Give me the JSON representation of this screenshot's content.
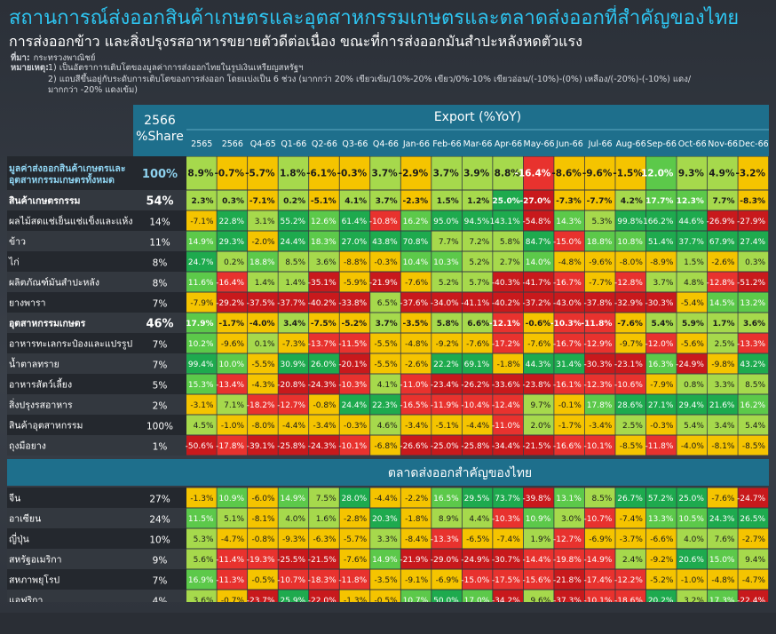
{
  "title": "สถานการณ์ส่งออกสินค้าเกษตรและอุตสาหกรรมเกษตรและตลาดส่งออกที่สำคัญของไทย",
  "subtitle": "การส่งออกข้าว และสิ่งปรุงรสอาหารขยายตัวดีต่อเนื่อง ขณะที่การส่งออกมันสำปะหลังหดตัวแรง",
  "source_label": "ที่มา:",
  "source_text": "กระทรวงพาณิชย์",
  "notes_label": "หมายเหตุ:",
  "notes_lines": [
    "1) เป็นอัตราการเติบโตของมูลค่าการส่งออกไทยในรูปเงินเหรียญสหรัฐฯ",
    "2) แถบสีขึ้นอยู่กับระดับการเติบโตของการส่งออก โดยแบ่งเป็น 6 ช่วง (มากกว่า 20% เขียวเข้ม/10%-20% เขียว/0%-10% เขียวอ่อน/(-10%)-(0%) เหลือง/(-20%)-(-10%) แดง/",
    "มากกว่า -20% แดงเข้ม)"
  ],
  "colors": {
    "header_bg": "#1e6f8c",
    "share_bg": "#1e6f8c",
    "dark_green": "#1eaa4e",
    "green": "#5cc94a",
    "light_green": "#a6d94c",
    "yellow": "#f5c400",
    "red": "#e8322e",
    "dark_red": "#c8191c",
    "row_dark": "#24282e",
    "row_light": "#33383f"
  },
  "chart_data": {
    "type": "table",
    "share_header": [
      "2566",
      "%Share"
    ],
    "export_header": "Export (%YoY)",
    "columns": [
      "2565",
      "2566",
      "Q4-65",
      "Q1-66",
      "Q2-66",
      "Q3-66",
      "Q4-66",
      "Jan-66",
      "Feb-66",
      "Mar-66",
      "Apr-66",
      "May-66",
      "Jun-66",
      "Jul-66",
      "Aug-66",
      "Sep-66",
      "Oct-66",
      "Nov-66",
      "Dec-66"
    ],
    "section1_rows": [
      {
        "label": "มูลค่าส่งออกสินค้าเกษตรและอุตสาหกรรมเกษตรทั้งหมด",
        "label_lines": [
          "มูลค่าส่งออกสินค้าเกษตรและ",
          "อุตสาหกรรมเกษตรทั้งหมด"
        ],
        "style": "total",
        "share": "100%",
        "values": [
          "8.9%",
          "-0.7%",
          "-5.7%",
          "1.8%",
          "-6.1%",
          "-0.3%",
          "3.7%",
          "-2.9%",
          "3.7%",
          "3.9%",
          "8.8%",
          "-16.4%",
          "-8.6%",
          "-9.6%",
          "-1.5%",
          "12.0%",
          "9.3%",
          "4.9%",
          "-3.2%"
        ]
      },
      {
        "label": "สินค้าเกษตรกรรม",
        "style": "bold",
        "share": "54%",
        "values": [
          "2.3%",
          "0.3%",
          "-7.1%",
          "0.2%",
          "-5.1%",
          "4.1%",
          "3.7%",
          "-2.3%",
          "1.5%",
          "1.2%",
          "25.0%",
          "-27.0%",
          "-7.3%",
          "-7.7%",
          "4.2%",
          "17.7%",
          "12.3%",
          "7.7%",
          "-8.3%"
        ]
      },
      {
        "label": "ผลไม้สดแช่เย็นแช่แข็งและแห้ง",
        "style": "normal",
        "share": "14%",
        "values": [
          "-7.1%",
          "22.8%",
          "3.1%",
          "55.2%",
          "12.6%",
          "61.4%",
          "-10.8%",
          "16.2%",
          "95.0%",
          "94.5%",
          "143.1%",
          "-54.8%",
          "14.3%",
          "5.3%",
          "99.8%",
          "166.2%",
          "44.6%",
          "-26.9%",
          "-27.9%"
        ]
      },
      {
        "label": "ข้าว",
        "style": "normal",
        "share": "11%",
        "values": [
          "14.9%",
          "29.3%",
          "-2.0%",
          "24.4%",
          "18.3%",
          "27.0%",
          "43.8%",
          "70.8%",
          "7.7%",
          "7.2%",
          "5.8%",
          "84.7%",
          "-15.0%",
          "18.8%",
          "10.8%",
          "51.4%",
          "37.7%",
          "67.9%",
          "27.4%"
        ]
      },
      {
        "label": "ไก่",
        "style": "normal",
        "share": "8%",
        "values": [
          "24.7%",
          "0.2%",
          "18.8%",
          "8.5%",
          "3.6%",
          "-8.8%",
          "-0.3%",
          "10.4%",
          "10.3%",
          "5.2%",
          "2.7%",
          "14.0%",
          "-4.8%",
          "-9.6%",
          "-8.0%",
          "-8.9%",
          "1.5%",
          "-2.6%",
          "0.3%"
        ]
      },
      {
        "label": "ผลิตภัณฑ์มันสำปะหลัง",
        "style": "normal",
        "share": "8%",
        "values": [
          "11.6%",
          "-16.4%",
          "1.4%",
          "1.4%",
          "-35.1%",
          "-5.9%",
          "-21.9%",
          "-7.6%",
          "5.2%",
          "5.7%",
          "-40.3%",
          "-41.7%",
          "-16.7%",
          "-7.7%",
          "-12.8%",
          "3.7%",
          "4.8%",
          "-12.8%",
          "-51.2%"
        ]
      },
      {
        "label": "ยางพารา",
        "style": "normal",
        "share": "7%",
        "values": [
          "-7.9%",
          "-29.2%",
          "-37.5%",
          "-37.7%",
          "-40.2%",
          "-33.8%",
          "6.5%",
          "-37.6%",
          "-34.0%",
          "-41.1%",
          "-40.2%",
          "-37.2%",
          "-43.0%",
          "-37.8%",
          "-32.9%",
          "-30.3%",
          "-5.4%",
          "14.5%",
          "13.2%"
        ]
      },
      {
        "label": "อุตสาหกรรมเกษตร",
        "style": "bold",
        "share": "46%",
        "values": [
          "17.9%",
          "-1.7%",
          "-4.0%",
          "3.4%",
          "-7.5%",
          "-5.2%",
          "3.7%",
          "-3.5%",
          "5.8%",
          "6.6%",
          "-12.1%",
          "-0.6%",
          "-10.3%",
          "-11.8%",
          "-7.6%",
          "5.4%",
          "5.9%",
          "1.7%",
          "3.6%"
        ]
      },
      {
        "label": "อาหารทะเลกระป๋องและแปรรูป",
        "style": "normal",
        "share": "7%",
        "values": [
          "10.2%",
          "-9.6%",
          "0.1%",
          "-7.3%",
          "-13.7%",
          "-11.5%",
          "-5.5%",
          "-4.8%",
          "-9.2%",
          "-7.6%",
          "-17.2%",
          "-7.6%",
          "-16.7%",
          "-12.9%",
          "-9.7%",
          "-12.0%",
          "-5.6%",
          "2.5%",
          "-13.3%"
        ]
      },
      {
        "label": "น้ำตาลทราย",
        "style": "normal",
        "share": "7%",
        "values": [
          "99.4%",
          "10.0%",
          "-5.5%",
          "30.9%",
          "26.0%",
          "-20.1%",
          "-5.5%",
          "-2.6%",
          "22.2%",
          "69.1%",
          "-1.8%",
          "44.3%",
          "31.4%",
          "-30.3%",
          "-23.1%",
          "16.3%",
          "-24.9%",
          "-9.8%",
          "43.2%"
        ]
      },
      {
        "label": "อาหารสัตว์เลี้ยง",
        "style": "normal",
        "share": "5%",
        "values": [
          "15.3%",
          "-13.4%",
          "-4.3%",
          "-20.8%",
          "-24.3%",
          "-10.3%",
          "4.1%",
          "-11.0%",
          "-23.4%",
          "-26.2%",
          "-33.6%",
          "-23.8%",
          "-16.1%",
          "-12.3%",
          "-10.6%",
          "-7.9%",
          "0.8%",
          "3.3%",
          "8.5%"
        ]
      },
      {
        "label": "สิ่งปรุงรสอาหาร",
        "style": "normal",
        "share": "2%",
        "values": [
          "-3.1%",
          "7.1%",
          "-18.2%",
          "-12.7%",
          "-0.8%",
          "24.4%",
          "22.3%",
          "-16.5%",
          "-11.9%",
          "-10.4%",
          "-12.4%",
          "9.7%",
          "-0.1%",
          "17.8%",
          "28.6%",
          "27.1%",
          "29.4%",
          "21.6%",
          "16.2%"
        ]
      },
      {
        "label": "สินค้าอุตสาหกรรม",
        "style": "normal",
        "share": "100%",
        "values": [
          "4.5%",
          "-1.0%",
          "-8.0%",
          "-4.4%",
          "-3.4%",
          "-0.3%",
          "4.6%",
          "-3.4%",
          "-5.1%",
          "-4.4%",
          "-11.0%",
          "2.0%",
          "-1.7%",
          "-3.4%",
          "2.5%",
          "-0.3%",
          "5.4%",
          "3.4%",
          "5.4%"
        ]
      },
      {
        "label": "ถุงมือยาง",
        "style": "normal",
        "share": "1%",
        "values": [
          "-50.6%",
          "-17.8%",
          "-39.1%",
          "-25.8%",
          "-24.3%",
          "-10.1%",
          "-6.8%",
          "-26.6%",
          "-25.0%",
          "-25.8%",
          "-34.4%",
          "-21.5%",
          "-16.6%",
          "-10.1%",
          "-8.5%",
          "-11.8%",
          "-4.0%",
          "-8.1%",
          "-8.5%"
        ]
      }
    ],
    "section2_title": "ตลาดส่งออกสำคัญของไทย",
    "section2_rows": [
      {
        "label": "จีน",
        "style": "normal",
        "share": "27%",
        "values": [
          "-1.3%",
          "10.9%",
          "-6.0%",
          "14.9%",
          "7.5%",
          "28.0%",
          "-4.4%",
          "-2.2%",
          "16.5%",
          "29.5%",
          "73.7%",
          "-39.8%",
          "13.1%",
          "8.5%",
          "26.7%",
          "57.2%",
          "25.0%",
          "-7.6%",
          "-24.7%"
        ]
      },
      {
        "label": "อาเซียน",
        "style": "normal",
        "share": "24%",
        "values": [
          "11.5%",
          "5.1%",
          "-8.1%",
          "4.0%",
          "1.6%",
          "-2.8%",
          "20.3%",
          "-1.8%",
          "8.9%",
          "4.4%",
          "-10.3%",
          "10.9%",
          "3.0%",
          "-10.7%",
          "-7.4%",
          "13.3%",
          "10.5%",
          "24.3%",
          "26.5%"
        ]
      },
      {
        "label": "ญี่ปุ่น",
        "style": "normal",
        "share": "10%",
        "values": [
          "5.3%",
          "-4.7%",
          "-0.8%",
          "-9.3%",
          "-6.3%",
          "-5.7%",
          "3.3%",
          "-8.4%",
          "-13.3%",
          "-6.5%",
          "-7.4%",
          "1.9%",
          "-12.7%",
          "-6.9%",
          "-3.7%",
          "-6.6%",
          "4.0%",
          "7.6%",
          "-2.7%"
        ]
      },
      {
        "label": "สหรัฐอเมริกา",
        "style": "normal",
        "share": "9%",
        "values": [
          "5.6%",
          "-11.4%",
          "-19.3%",
          "-25.5%",
          "-21.5%",
          "-7.6%",
          "14.9%",
          "-21.9%",
          "-29.0%",
          "-24.9%",
          "-30.7%",
          "-14.4%",
          "-19.8%",
          "-14.9%",
          "2.4%",
          "-9.2%",
          "20.6%",
          "15.0%",
          "9.4%"
        ]
      },
      {
        "label": "สหภาพยุโรป",
        "style": "normal",
        "share": "7%",
        "values": [
          "16.9%",
          "-11.3%",
          "-0.5%",
          "-10.7%",
          "-18.3%",
          "-11.8%",
          "-3.5%",
          "-9.1%",
          "-6.9%",
          "-15.0%",
          "-17.5%",
          "-15.6%",
          "-21.8%",
          "-17.4%",
          "-12.2%",
          "-5.2%",
          "-1.0%",
          "-4.8%",
          "-4.7%"
        ]
      },
      {
        "label": "แอฟริกา",
        "style": "normal",
        "share": "4%",
        "values": [
          "3.6%",
          "-0.7%",
          "-23.7%",
          "25.9%",
          "-22.0%",
          "-1.3%",
          "-0.5%",
          "10.7%",
          "50.0%",
          "17.0%",
          "-34.2%",
          "9.6%",
          "-37.3%",
          "-10.1%",
          "-18.6%",
          "20.2%",
          "3.2%",
          "17.3%",
          "-22.4%"
        ]
      }
    ]
  }
}
